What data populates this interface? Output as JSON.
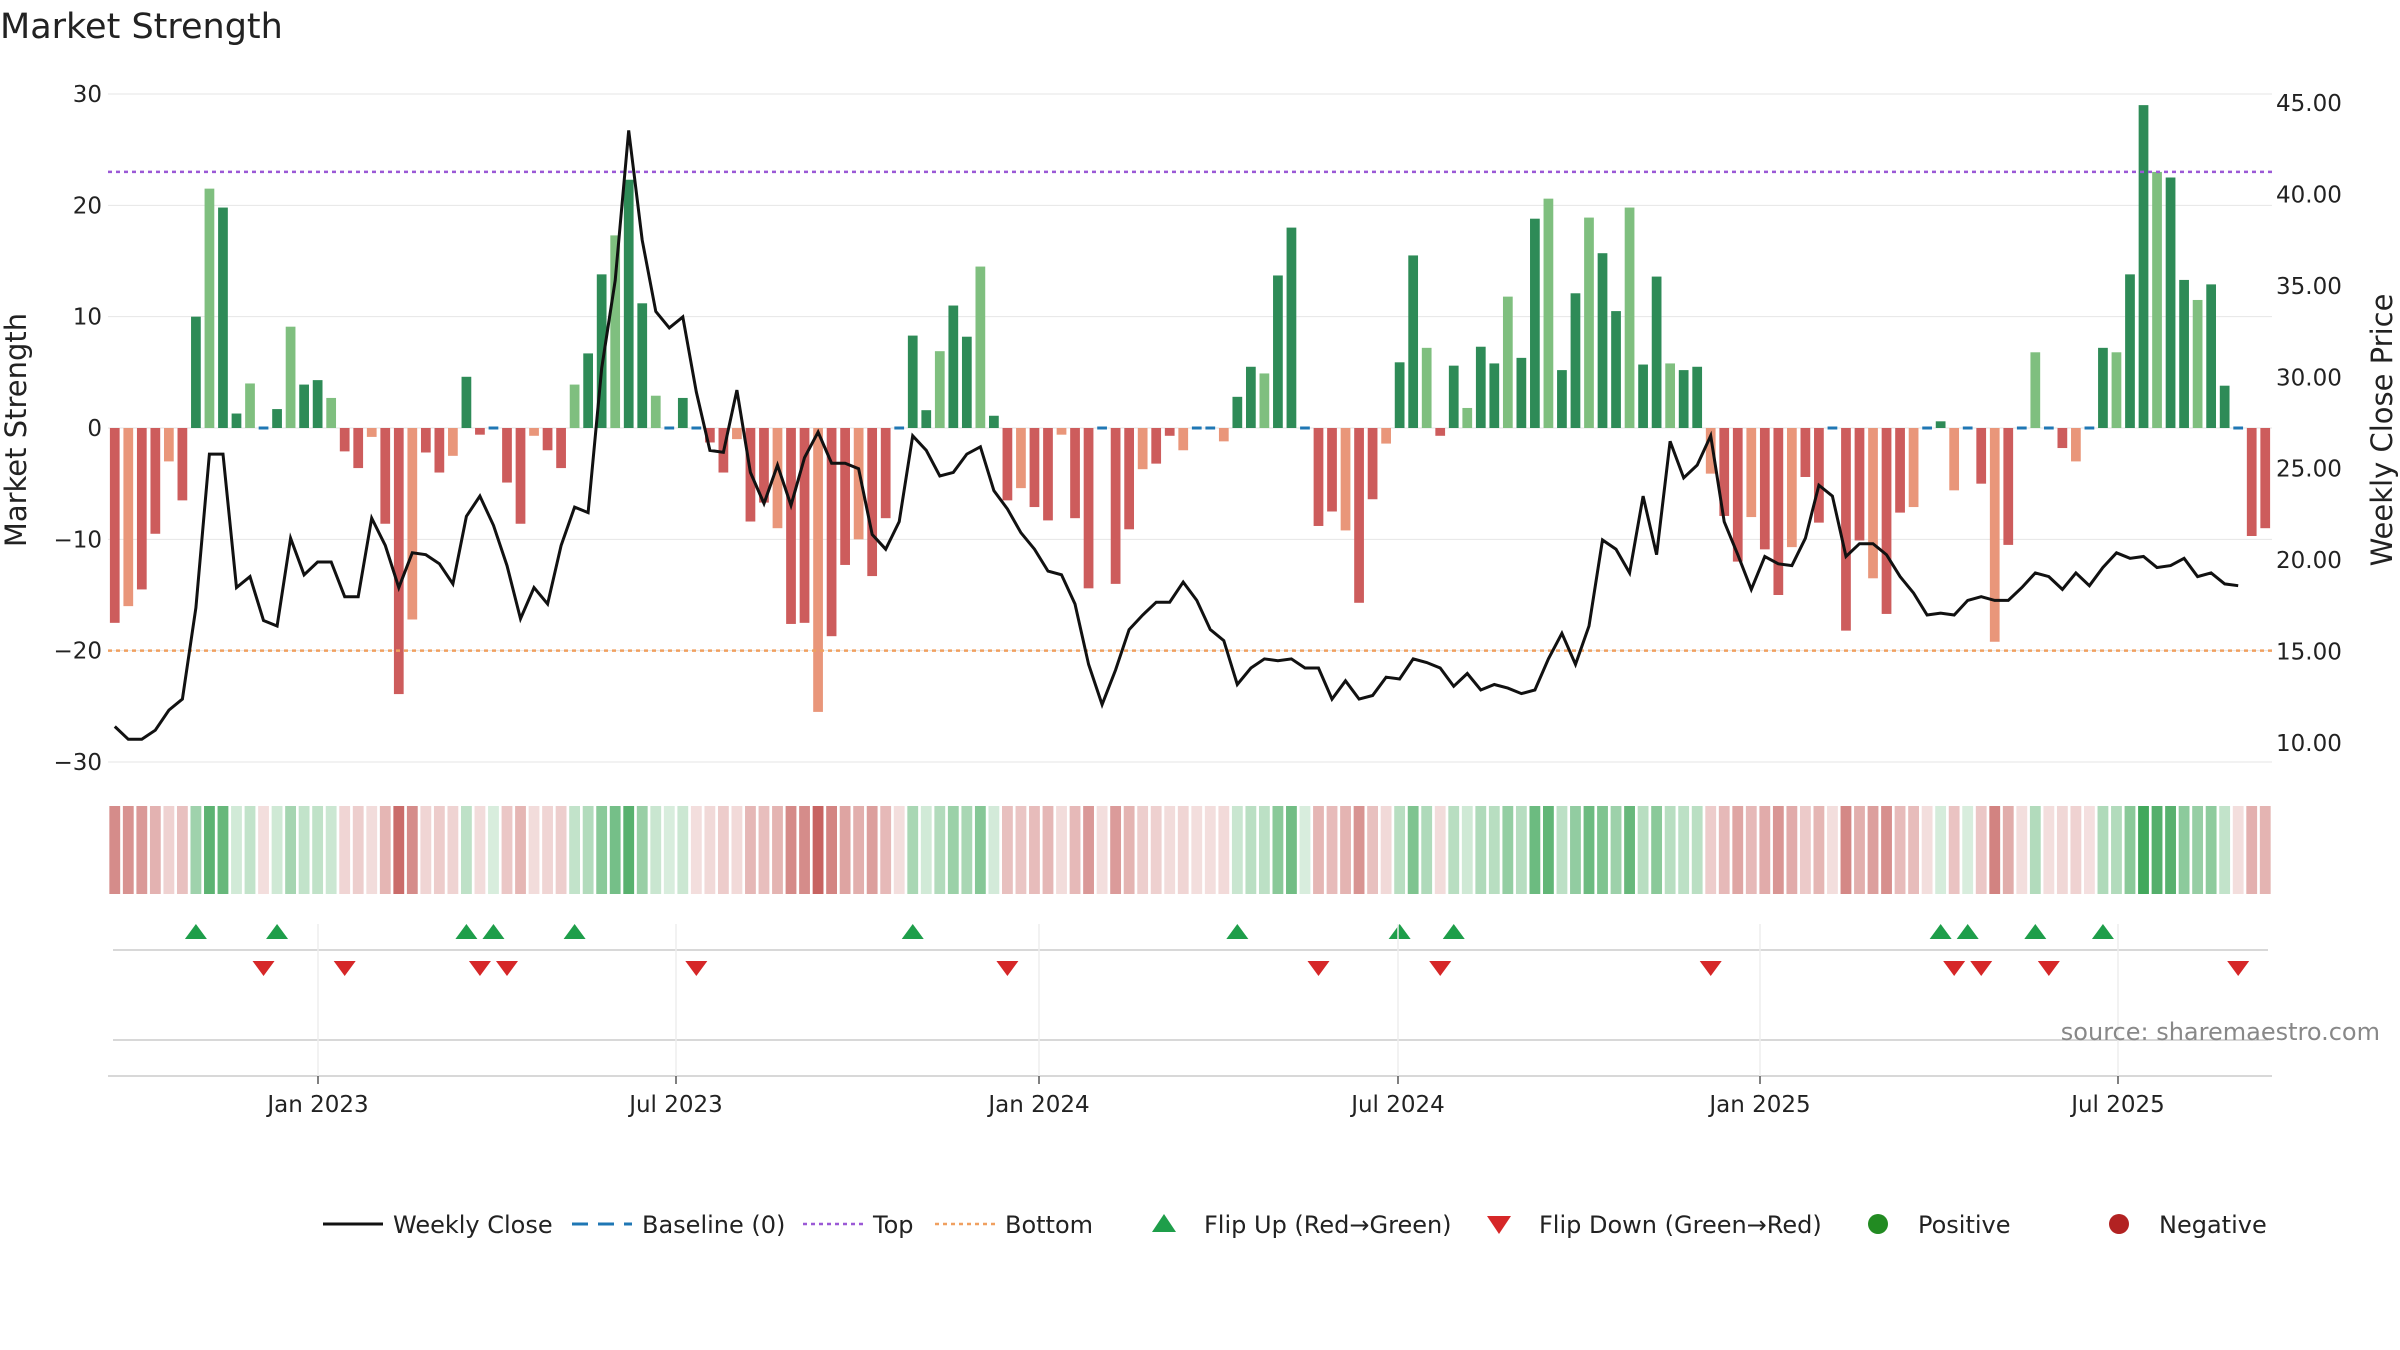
{
  "chart_data": {
    "type": "bar",
    "title": "Market Strength",
    "ylabel": "Market Strength",
    "y2label": "Weekly Close Price",
    "ylim": [
      -30,
      30
    ],
    "y2lim": [
      10,
      45
    ],
    "yticks": [
      "30",
      "20",
      "10",
      "0",
      "−10",
      "−20",
      "−30"
    ],
    "y2ticks": [
      "45.00",
      "40.00",
      "35.00",
      "30.00",
      "25.00",
      "20.00",
      "15.00",
      "10.00"
    ],
    "xticks": [
      "Jan 2023",
      "Jul 2023",
      "Jan 2024",
      "Jul 2024",
      "Jan 2025",
      "Jul 2025"
    ],
    "top_line": 23,
    "bottom_line": -20,
    "source": "source: sharemaestro.com",
    "legend": [
      {
        "label": "Weekly Close",
        "symbol": "line",
        "color": "#111111"
      },
      {
        "label": "Baseline (0)",
        "symbol": "dash",
        "color": "#1f77b4"
      },
      {
        "label": "Top",
        "symbol": "dot",
        "color": "#9b59d6"
      },
      {
        "label": "Bottom",
        "symbol": "dot",
        "color": "#f0a060"
      },
      {
        "label": "Flip Up (Red→Green)",
        "symbol": "tri-up",
        "color": "#1e9e4a"
      },
      {
        "label": "Flip Down (Green→Red)",
        "symbol": "tri-down",
        "color": "#d62728"
      },
      {
        "label": "Positive",
        "symbol": "circle",
        "color": "#228b22"
      },
      {
        "label": "Negative",
        "symbol": "circle",
        "color": "#b22222"
      }
    ],
    "bar_colors": {
      "pos_dark": "#2e8b57",
      "pos_light": "#7fbf7f",
      "neg_dark": "#cd5c5c",
      "neg_light": "#e9967a",
      "baseline": "#1f77b4",
      "heat_pos": "#2e9e4a",
      "heat_neg": "#c0504d"
    },
    "strength": [
      -17.5,
      -16,
      -14.5,
      -9.5,
      -3,
      -6.5,
      10,
      21.5,
      19.8,
      1.3,
      4,
      -0.3,
      1.7,
      9.1,
      3.9,
      4.3,
      2.7,
      -2.1,
      -3.6,
      -0.8,
      -8.6,
      -23.9,
      -17.2,
      -2.2,
      -4,
      -2.5,
      4.6,
      -0.6,
      0.5,
      -4.9,
      -8.6,
      -0.7,
      -2,
      -3.6,
      3.9,
      6.7,
      13.8,
      17.3,
      22.3,
      11.2,
      2.9,
      0.5,
      2.7,
      -0.5,
      -1.3,
      -4,
      -1,
      -8.4,
      -6.7,
      -9,
      -17.6,
      -17.5,
      -25.5,
      -18.7,
      -12.3,
      -10,
      -13.3,
      -8.1,
      -0.3,
      8.3,
      1.6,
      6.9,
      11,
      8.2,
      14.5,
      1.1,
      -6.5,
      -5.4,
      -7.1,
      -8.3,
      -0.6,
      -8.1,
      -14.4,
      -0.3,
      -14,
      -9.1,
      -3.7,
      -3.2,
      -0.7,
      -2,
      -0.5,
      -0.4,
      -1.2,
      2.8,
      5.5,
      4.9,
      13.7,
      18,
      0.5,
      -8.8,
      -7.5,
      -9.2,
      -15.7,
      -6.4,
      -1.4,
      5.9,
      15.5,
      7.2,
      -0.7,
      5.6,
      1.8,
      7.3,
      5.8,
      11.8,
      6.3,
      18.8,
      20.6,
      5.2,
      12.1,
      18.9,
      15.7,
      10.5,
      19.8,
      5.7,
      13.6,
      5.8,
      5.2,
      5.5,
      -4.1,
      -7.9,
      -12,
      -8,
      -10.9,
      -15,
      -10.7,
      -4.4,
      -8.5,
      -0.3,
      -18.2,
      -10.1,
      -13.5,
      -16.7,
      -7.6,
      -7.1,
      -0.3,
      0.6,
      -5.6,
      0.4,
      -5,
      -19.2,
      -10.5,
      -0.3,
      6.8,
      -0.3,
      -1.8,
      -3,
      -0.1,
      7.2,
      6.8,
      13.8,
      29,
      23,
      22.5,
      13.3,
      11.5,
      12.9,
      3.8,
      -0.3,
      -9.7,
      -9
    ],
    "close": [
      10.9,
      10.2,
      10.2,
      10.7,
      11.8,
      12.4,
      17.4,
      25.8,
      25.8,
      18.5,
      19.1,
      16.7,
      16.4,
      21.2,
      19.2,
      19.9,
      19.9,
      18,
      18,
      22.3,
      20.8,
      18.5,
      20.4,
      20.3,
      19.8,
      18.7,
      22.4,
      23.5,
      21.9,
      19.7,
      16.8,
      18.5,
      17.6,
      20.8,
      22.9,
      22.6,
      30.5,
      35.3,
      43.5,
      37.5,
      33.6,
      32.7,
      33.3,
      29.2,
      26,
      25.9,
      29.3,
      24.8,
      23.1,
      25.2,
      23,
      25.6,
      27,
      25.3,
      25.3,
      25,
      21.4,
      20.6,
      22.1,
      26.8,
      26,
      24.6,
      24.8,
      25.8,
      26.2,
      23.8,
      22.8,
      21.5,
      20.6,
      19.4,
      19.2,
      17.6,
      14.3,
      12.1,
      14,
      16.2,
      17,
      17.7,
      17.7,
      18.8,
      17.8,
      16.2,
      15.6,
      13.2,
      14.1,
      14.6,
      14.5,
      14.6,
      14.1,
      14.1,
      12.4,
      13.4,
      12.4,
      12.6,
      13.6,
      13.5,
      14.6,
      14.4,
      14.1,
      13.1,
      13.8,
      12.9,
      13.2,
      13,
      12.7,
      12.9,
      14.6,
      16,
      14.3,
      16.4,
      21.1,
      20.6,
      19.3,
      23.5,
      20.3,
      26.5,
      24.5,
      25.2,
      26.8,
      22.1,
      20.3,
      18.4,
      20.2,
      19.8,
      19.7,
      21.2,
      24.1,
      23.5,
      20.2,
      20.9,
      20.9,
      20.3,
      19.1,
      18.2,
      17,
      17.1,
      17,
      17.8,
      18,
      17.8,
      17.8,
      18.5,
      19.3,
      19.1,
      18.4,
      19.3,
      18.6,
      19.6,
      20.4,
      20.1,
      20.2,
      19.6,
      19.7,
      20.1,
      19.1,
      19.3,
      18.7,
      18.6
    ]
  }
}
